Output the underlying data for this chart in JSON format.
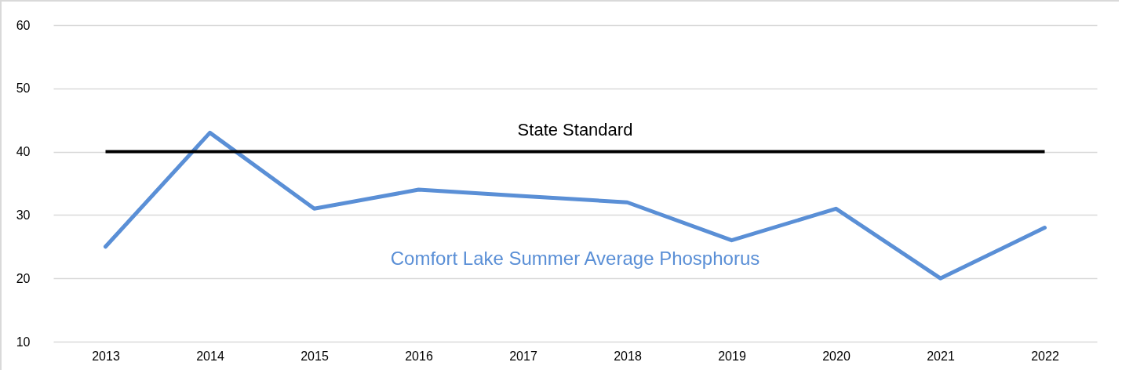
{
  "chart_data": {
    "type": "line",
    "categories": [
      "2013",
      "2014",
      "2015",
      "2016",
      "2017",
      "2018",
      "2019",
      "2020",
      "2021",
      "2022"
    ],
    "series": [
      {
        "name": "Comfort Lake Summer Average Phosphorus",
        "color": "#5a8fd6",
        "values": [
          25,
          43,
          31,
          34,
          33,
          32,
          26,
          31,
          20,
          28
        ]
      }
    ],
    "ylim": [
      10,
      60
    ],
    "yticks": [
      10,
      20,
      30,
      40,
      50,
      60
    ],
    "grid": "y",
    "legend": false,
    "marker": "none",
    "ref_lines": [
      {
        "axis": "y",
        "value": 40,
        "label": "State Standard",
        "color": "#000000"
      }
    ]
  }
}
